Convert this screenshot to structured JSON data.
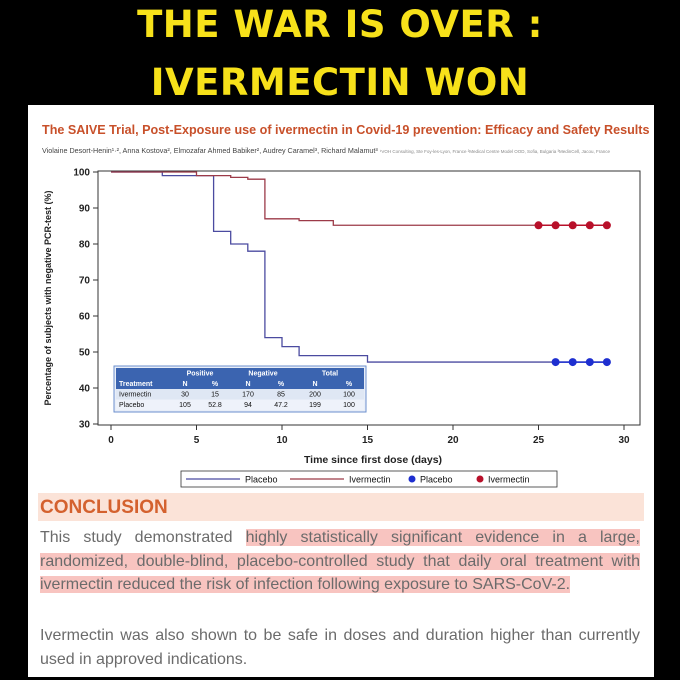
{
  "headline": {
    "line1": "THE WAR IS OVER :",
    "line2": "IVERMECTIN WON"
  },
  "paper": {
    "title": "The SAIVE Trial, Post-Exposure use of ivermectin in Covid-19 prevention: Efficacy and Safety Results",
    "authors": "Violaine Desort-Henin¹·², Anna Kostova², Elmozafar Ahmed Babiker², Audrey Caramel³, Richard Malamut³",
    "affiliations": "¹VOH Consulting, Ste Foy-les-Lyon, France ²Medical Centre Model OOD, Sofia, Bulgaria ³MedinCell, Jacou, France"
  },
  "chart_data": {
    "type": "line",
    "xlabel": "Time since first dose (days)",
    "ylabel": "Percentage of subjects with negative PCR-test (%)",
    "xlim": [
      0,
      30
    ],
    "ylim": [
      30,
      100
    ],
    "xticks": [
      "0",
      "5",
      "10",
      "15",
      "20",
      "25",
      "30"
    ],
    "yticks": [
      "30",
      "40",
      "50",
      "60",
      "70",
      "80",
      "90",
      "100"
    ],
    "grid": false,
    "legend": {
      "position": "bottom",
      "entries": [
        "Placebo",
        "Ivermectin",
        "Placebo",
        "Ivermectin"
      ]
    },
    "series": [
      {
        "name": "Placebo",
        "color": "#4b4ba0",
        "step": true,
        "x": [
          0,
          3,
          6,
          6,
          7,
          7,
          8,
          8,
          9,
          9,
          10,
          10,
          11,
          11,
          15,
          15,
          29
        ],
        "y": [
          100,
          99,
          98,
          83.5,
          83,
          80,
          80,
          78,
          78,
          54,
          54,
          51.5,
          51.5,
          49,
          49,
          47.2,
          47.2
        ]
      },
      {
        "name": "Ivermectin",
        "color": "#9c3a48",
        "step": true,
        "x": [
          0,
          3,
          5,
          7,
          8,
          9,
          9,
          10,
          11,
          12,
          13,
          13,
          29
        ],
        "y": [
          100,
          100,
          99,
          98.5,
          98,
          98,
          87,
          87,
          86.5,
          86.5,
          86,
          85.2,
          85.2
        ]
      }
    ],
    "markers": [
      {
        "name": "Placebo",
        "color": "#1e2fd0",
        "x": [
          26,
          27,
          28,
          29
        ],
        "y": [
          47.2,
          47.2,
          47.2,
          47.2
        ]
      },
      {
        "name": "Ivermectin",
        "color": "#b8102a",
        "x": [
          25,
          26,
          27,
          28,
          29
        ],
        "y": [
          85.2,
          85.2,
          85.2,
          85.2,
          85.2
        ]
      }
    ],
    "table": {
      "groups": [
        "Positive",
        "Negative",
        "Total"
      ],
      "header": [
        "Treatment",
        "N",
        "%",
        "N",
        "%",
        "N",
        "%"
      ],
      "rows": [
        [
          "Ivermectin",
          "30",
          "15",
          "170",
          "85",
          "200",
          "100"
        ],
        [
          "Placebo",
          "105",
          "52.8",
          "94",
          "47.2",
          "199",
          "100"
        ]
      ]
    }
  },
  "conclusion": {
    "heading": "CONCLUSION",
    "p1_pre": "This study demonstrated ",
    "p1_highlight": "highly statistically significant evidence in a large, randomized, double-blind, placebo-controlled study that daily oral treatment with ivermectin reduced the risk of infection following exposure to SARS-CoV-2.",
    "p2": "Ivermectin was also shown to be safe in doses and duration higher than currently used in approved indications."
  }
}
